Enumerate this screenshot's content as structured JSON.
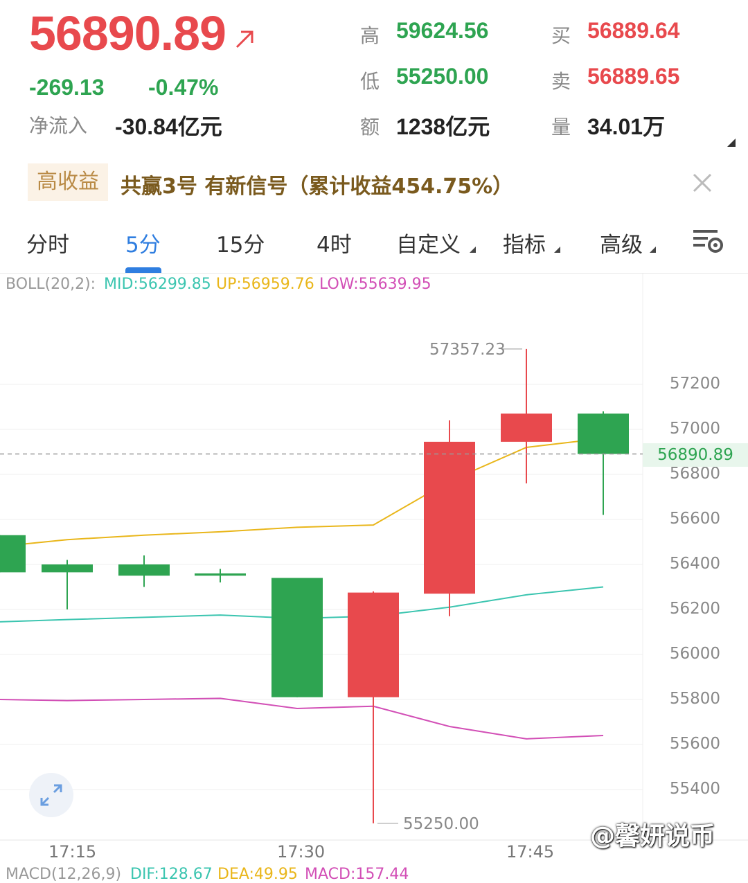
{
  "quote": {
    "price": "56890.89",
    "change": "-269.13",
    "change_pct": "-0.47%",
    "net_inflow_label": "净流入",
    "net_inflow_value": "-30.84亿元"
  },
  "stats": {
    "high_label": "高",
    "high_value": "59624.56",
    "low_label": "低",
    "low_value": "55250.00",
    "amount_label": "额",
    "amount_value": "1238亿元",
    "buy_label": "买",
    "buy_value": "56889.64",
    "sell_label": "卖",
    "sell_value": "56889.65",
    "volume_label": "量",
    "volume_value": "34.01万"
  },
  "promo": {
    "badge": "高收益",
    "text": "共赢3号 有新信号（累计收益454.75%）"
  },
  "tabs": [
    {
      "label": "分时"
    },
    {
      "label": "5分"
    },
    {
      "label": "15分"
    },
    {
      "label": "4时"
    },
    {
      "label": "自定义"
    },
    {
      "label": "指标"
    },
    {
      "label": "高级"
    }
  ],
  "indicator": {
    "name": "BOLL(20,2):",
    "mid": "MID:56299.85",
    "up": "UP:56959.76",
    "low": "LOW:55639.95"
  },
  "macd": {
    "name": "MACD(12,26,9)",
    "dif": "DIF:128.67",
    "dea": "DEA:49.95",
    "macd": "MACD:157.44"
  },
  "colors": {
    "up": "#e8494d",
    "down": "#2ea451",
    "mid": "#3cc5b0",
    "upper": "#e9b61a",
    "lower": "#d24fb6",
    "accent": "#2f7ee0"
  },
  "chart_data": {
    "type": "candlestick",
    "y_ticks": [
      57200,
      57000,
      56800,
      56600,
      56400,
      56200,
      56000,
      55800,
      55600,
      55400
    ],
    "ylim": [
      55250,
      57400
    ],
    "x_tick_labels": [
      "17:15",
      "17:30",
      "17:45"
    ],
    "current_price_label": "56890.89",
    "max_label": "57357.23",
    "min_label": "55250.00",
    "candles": [
      {
        "open": 56530,
        "close": 56365,
        "high": 56530,
        "low": 56365
      },
      {
        "open": 56400,
        "close": 56365,
        "high": 56420,
        "low": 56200
      },
      {
        "open": 56400,
        "close": 56350,
        "high": 56440,
        "low": 56300
      },
      {
        "open": 56360,
        "close": 56350,
        "high": 56380,
        "low": 56320
      },
      {
        "open": 56340,
        "close": 55810,
        "high": 56340,
        "low": 55810
      },
      {
        "open": 55810,
        "close": 56275,
        "high": 56280,
        "low": 55250
      },
      {
        "open": 56270,
        "close": 56945,
        "high": 57040,
        "low": 56170
      },
      {
        "open": 56945,
        "close": 57070,
        "high": 57357.23,
        "low": 56760
      },
      {
        "open": 57070,
        "close": 56890.89,
        "high": 57080,
        "low": 56620
      }
    ],
    "boll_up": [
      56480,
      56510,
      56530,
      56545,
      56565,
      56575,
      56770,
      56920,
      56960
    ],
    "boll_mid": [
      56145,
      56155,
      56165,
      56175,
      56160,
      56170,
      56210,
      56265,
      56300
    ],
    "boll_low": [
      55800,
      55795,
      55800,
      55805,
      55760,
      55770,
      55680,
      55625,
      55640
    ]
  }
}
